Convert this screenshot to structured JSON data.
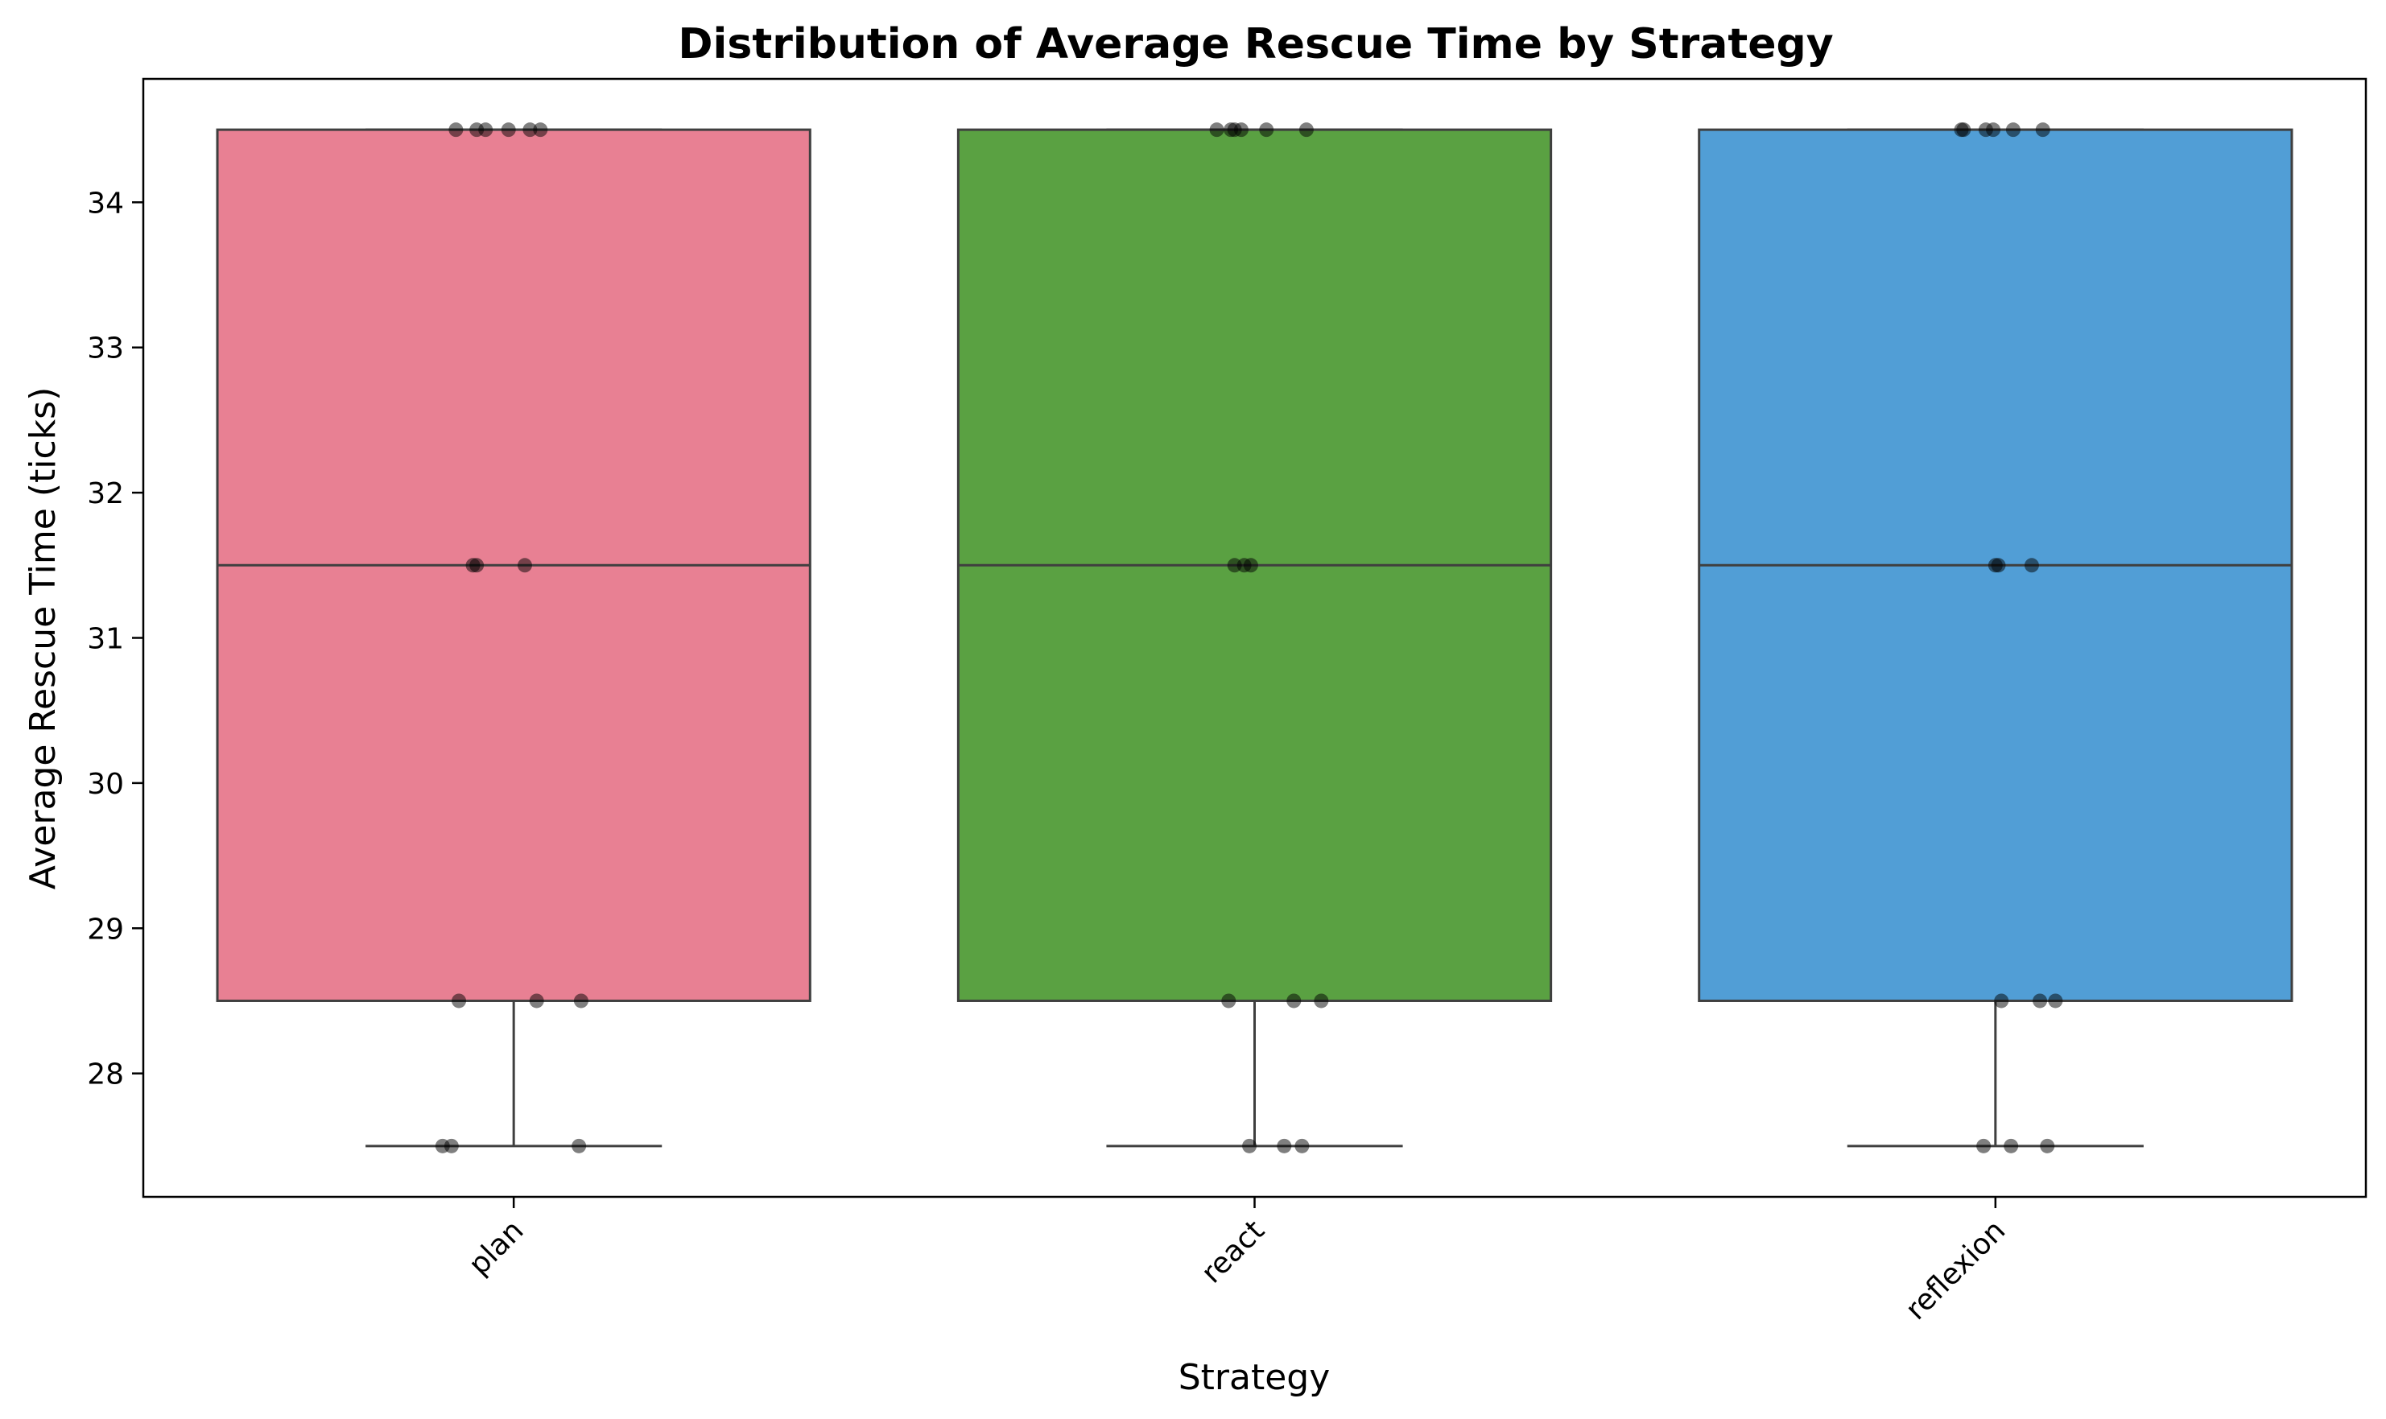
{
  "chart_data": {
    "type": "box",
    "title": "Distribution of Average Rescue Time by Strategy",
    "xlabel": "Strategy",
    "ylabel": "Average Rescue Time (ticks)",
    "ylim": [
      27.15,
      34.85
    ],
    "yticks": [
      "28",
      "29",
      "30",
      "31",
      "32",
      "33",
      "34"
    ],
    "categories": [
      "plan",
      "react",
      "reflexion"
    ],
    "colors": [
      "#e88093",
      "#5aa142",
      "#519ed6"
    ],
    "boxes": [
      {
        "q1": 28.5,
        "median": 31.5,
        "q3": 34.5,
        "whisker_low": 27.5,
        "whisker_high": 34.5
      },
      {
        "q1": 28.5,
        "median": 31.5,
        "q3": 34.5,
        "whisker_low": 27.5,
        "whisker_high": 34.5
      },
      {
        "q1": 28.5,
        "median": 31.5,
        "q3": 34.5,
        "whisker_low": 27.5,
        "whisker_high": 34.5
      }
    ],
    "points": [
      [
        {
          "x": -0.078,
          "y": 34.5
        },
        {
          "x": -0.05,
          "y": 34.5
        },
        {
          "x": -0.038,
          "y": 34.5
        },
        {
          "x": -0.007,
          "y": 34.5
        },
        {
          "x": 0.022,
          "y": 34.5
        },
        {
          "x": 0.036,
          "y": 34.5
        },
        {
          "x": -0.055,
          "y": 31.5
        },
        {
          "x": -0.05,
          "y": 31.5
        },
        {
          "x": 0.015,
          "y": 31.5
        },
        {
          "x": -0.074,
          "y": 28.5
        },
        {
          "x": 0.031,
          "y": 28.5
        },
        {
          "x": 0.091,
          "y": 28.5
        },
        {
          "x": -0.096,
          "y": 27.5
        },
        {
          "x": -0.084,
          "y": 27.5
        },
        {
          "x": 0.088,
          "y": 27.5
        }
      ],
      [
        {
          "x": -0.051,
          "y": 34.5
        },
        {
          "x": -0.032,
          "y": 34.5
        },
        {
          "x": -0.027,
          "y": 34.5
        },
        {
          "x": -0.018,
          "y": 34.5
        },
        {
          "x": 0.016,
          "y": 34.5
        },
        {
          "x": 0.07,
          "y": 34.5
        },
        {
          "x": -0.027,
          "y": 31.5
        },
        {
          "x": -0.014,
          "y": 31.5
        },
        {
          "x": -0.005,
          "y": 31.5
        },
        {
          "x": -0.035,
          "y": 28.5
        },
        {
          "x": 0.053,
          "y": 28.5
        },
        {
          "x": 0.09,
          "y": 28.5
        },
        {
          "x": -0.007,
          "y": 27.5
        },
        {
          "x": 0.04,
          "y": 27.5
        },
        {
          "x": 0.064,
          "y": 27.5
        }
      ],
      [
        {
          "x": -0.046,
          "y": 34.5
        },
        {
          "x": -0.043,
          "y": 34.5
        },
        {
          "x": -0.013,
          "y": 34.5
        },
        {
          "x": -0.003,
          "y": 34.5
        },
        {
          "x": 0.024,
          "y": 34.5
        },
        {
          "x": 0.064,
          "y": 34.5
        },
        {
          "x": 0.0,
          "y": 31.5
        },
        {
          "x": 0.004,
          "y": 31.5
        },
        {
          "x": 0.049,
          "y": 31.5
        },
        {
          "x": 0.008,
          "y": 28.5
        },
        {
          "x": 0.06,
          "y": 28.5
        },
        {
          "x": 0.081,
          "y": 28.5
        },
        {
          "x": -0.016,
          "y": 27.5
        },
        {
          "x": 0.021,
          "y": 27.5
        },
        {
          "x": 0.07,
          "y": 27.5
        }
      ]
    ]
  }
}
